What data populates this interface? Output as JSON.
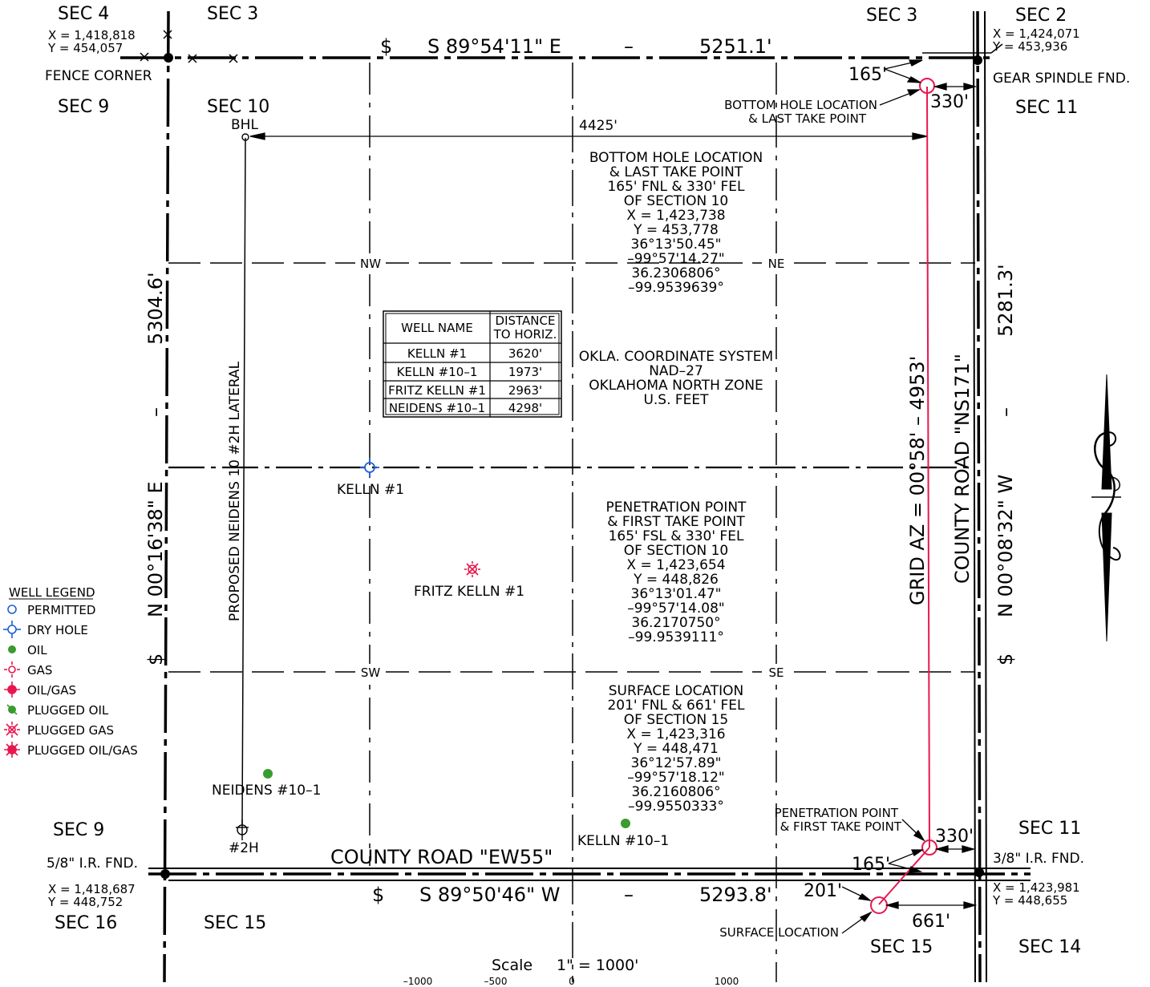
{
  "sections": {
    "top_left_sec4": "SEC 4",
    "top_sec3_left": "SEC 3",
    "top_sec3_right": "SEC 3",
    "top_right_sec2": "SEC 2",
    "sec9_upper": "SEC 9",
    "sec10": "SEC 10",
    "sec11_upper": "SEC 11",
    "sec9_lower": "SEC 9",
    "sec11_lower": "SEC 11",
    "sec16": "SEC 16",
    "sec15_left": "SEC 15",
    "sec15_right": "SEC 15",
    "sec14": "SEC 14"
  },
  "corners": {
    "nw_x": "X = 1,418,818",
    "nw_y": "Y = 454,057",
    "nw_label": "FENCE CORNER",
    "ne_x": "X = 1,424,071",
    "ne_y": "Y = 453,936",
    "ne_label": "GEAR SPINDLE FND.",
    "sw_label": "5/8\" I.R. FND.",
    "sw_x": "X = 1,418,687",
    "sw_y": "Y = 448,752",
    "se_label": "3/8\" I.R. FND.",
    "se_x": "X = 1,423,981",
    "se_y": "Y = 448,655"
  },
  "bearings": {
    "north_symbol": "$",
    "north": "S 89°54'11\" E",
    "north_dash": "–",
    "north_dist": "5251.1'",
    "south_symbol": "$",
    "south": "S 89°50'46\" W",
    "south_dash": "–",
    "south_dist": "5293.8'",
    "west": "N 00°16'38\" E",
    "west_dash": "–",
    "west_dist": "5304.6'",
    "west_symbol": "$",
    "east": "N 00°08'32\" W",
    "east_dash": "–",
    "east_dist": "5281.3'",
    "east_symbol": "$",
    "grid_az": "GRID AZ = 00°58' – 4953'"
  },
  "roads": {
    "county_road_east": "COUNTY ROAD \"NS171\"",
    "county_road_south": "COUNTY ROAD \"EW55\""
  },
  "quarters": {
    "nw": "NW",
    "ne": "NE",
    "sw": "SW",
    "se": "SE"
  },
  "dimensions": {
    "top_165": "165'",
    "top_330": "330'",
    "bhl_4425": "4425'",
    "pp_330": "330'",
    "pp_165": "165'",
    "sl_201": "201'",
    "sl_661": "661'"
  },
  "callouts": {
    "bhl_short": "BHL",
    "bottom_hole_1": "BOTTOM HOLE LOCATION",
    "bottom_hole_2": "& LAST TAKE POINT",
    "penetration_1": "PENETRATION POINT",
    "penetration_2": "& FIRST TAKE POINT",
    "surface": "SURFACE LOCATION",
    "lateral": "PROPOSED NEIDENS 10 #2H LATERAL",
    "well_2h": "#2H"
  },
  "bhl_block": [
    "BOTTOM HOLE LOCATION",
    "& LAST TAKE POINT",
    "165' FNL & 330' FEL",
    "OF SECTION 10",
    "X = 1,423,738",
    "Y = 453,778",
    "36°13'50.45\"",
    "–99°57'14.27\"",
    "36.2306806°",
    "–99.9539639°"
  ],
  "pp_block": [
    "PENETRATION POINT",
    "& FIRST TAKE POINT",
    "165' FSL & 330' FEL",
    "OF SECTION 10",
    "X = 1,423,654",
    "Y = 448,826",
    "36°13'01.47\"",
    "–99°57'14.08\"",
    "36.2170750°",
    "–99.9539111°"
  ],
  "sl_block": [
    "SURFACE LOCATION",
    "201' FNL & 661' FEL",
    "OF SECTION 15",
    "X = 1,423,316",
    "Y = 448,471",
    "36°12'57.89\"",
    "–99°57'18.12\"",
    "36.2160806°",
    "–99.9550333°"
  ],
  "coord_system": [
    "OKLA. COORDINATE SYSTEM",
    "NAD–27",
    "OKLAHOMA NORTH ZONE",
    "U.S. FEET"
  ],
  "well_table": {
    "header_name": "WELL NAME",
    "header_dist_1": "DISTANCE",
    "header_dist_2": "TO HORIZ.",
    "rows": [
      {
        "name": "KELLN #1",
        "dist": "3620'"
      },
      {
        "name": "KELLN #10–1",
        "dist": "1973'"
      },
      {
        "name": "FRITZ KELLN #1",
        "dist": "2963'"
      },
      {
        "name": "NEIDENS #10–1",
        "dist": "4298'"
      }
    ]
  },
  "wells": {
    "kelln_1": "KELLN #1",
    "fritz_kelln_1": "FRITZ KELLN #1",
    "neidens_10_1": "NEIDENS #10–1",
    "kelln_10_1": "KELLN #10–1"
  },
  "legend": {
    "title": "WELL LEGEND",
    "items": [
      {
        "label": "PERMITTED",
        "icon": "permitted-icon"
      },
      {
        "label": "DRY HOLE",
        "icon": "dry-hole-icon"
      },
      {
        "label": "OIL",
        "icon": "oil-icon"
      },
      {
        "label": "GAS",
        "icon": "gas-icon"
      },
      {
        "label": "OIL/GAS",
        "icon": "oil-gas-icon"
      },
      {
        "label": "PLUGGED OIL",
        "icon": "plugged-oil-icon"
      },
      {
        "label": "PLUGGED GAS",
        "icon": "plugged-gas-icon"
      },
      {
        "label": "PLUGGED OIL/GAS",
        "icon": "plugged-oil-gas-icon"
      }
    ]
  },
  "scale": {
    "label": "Scale",
    "value": "1\"  =  1000'",
    "ticks": [
      "–1000",
      "–500",
      "0",
      "1000"
    ]
  },
  "colors": {
    "line": "#000000",
    "well_path": "#e8174f",
    "permitted_blue": "#1f5fd6",
    "oil_green": "#3a9b2e",
    "gas_red": "#e8174f"
  }
}
